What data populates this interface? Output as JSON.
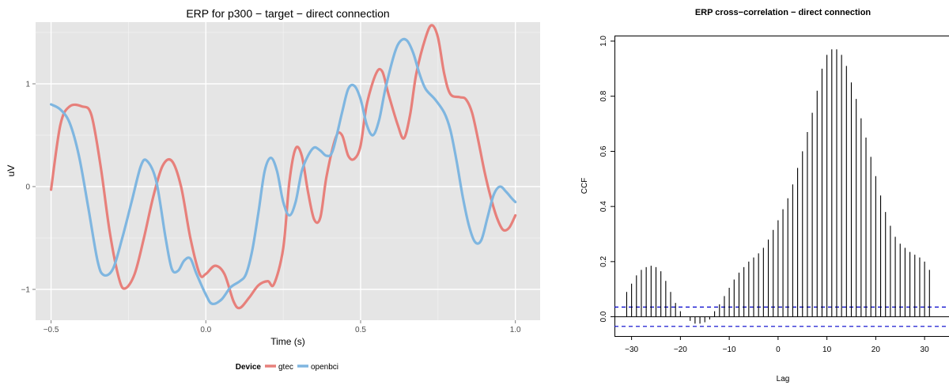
{
  "colors": {
    "gtec": "#E7807B",
    "openbci": "#7FB6E0",
    "panel_bg": "#E5E5E5",
    "ccf_bar": "#000000",
    "ccf_ci": "#0000CC"
  },
  "chart_data": [
    {
      "type": "line",
      "title": "ERP for p300 − target − direct connection",
      "xlabel": "Time (s)",
      "ylabel": "uV",
      "xlim": [
        -0.55,
        1.08
      ],
      "ylim": [
        -1.3,
        1.6
      ],
      "xticks": [
        -0.5,
        0.0,
        0.5,
        1.0
      ],
      "xtick_labels": [
        "−0.5",
        "0.0",
        "0.5",
        "1.0"
      ],
      "yticks": [
        -1,
        0,
        1
      ],
      "ytick_labels": [
        "−1",
        "0",
        "1"
      ],
      "grid": true,
      "legend": {
        "title": "Device",
        "position": "bottom",
        "entries": [
          "gtec",
          "openbci"
        ]
      },
      "series": [
        {
          "name": "gtec",
          "color_key": "gtec",
          "points": [
            [
              -0.5,
              -0.03
            ],
            [
              -0.47,
              0.6
            ],
            [
              -0.44,
              0.78
            ],
            [
              -0.4,
              0.78
            ],
            [
              -0.37,
              0.7
            ],
            [
              -0.34,
              0.2
            ],
            [
              -0.31,
              -0.45
            ],
            [
              -0.28,
              -0.9
            ],
            [
              -0.26,
              -0.99
            ],
            [
              -0.23,
              -0.85
            ],
            [
              -0.2,
              -0.5
            ],
            [
              -0.17,
              -0.1
            ],
            [
              -0.14,
              0.2
            ],
            [
              -0.11,
              0.25
            ],
            [
              -0.08,
              0.0
            ],
            [
              -0.05,
              -0.5
            ],
            [
              -0.02,
              -0.85
            ],
            [
              0.0,
              -0.85
            ],
            [
              0.03,
              -0.77
            ],
            [
              0.06,
              -0.85
            ],
            [
              0.09,
              -1.12
            ],
            [
              0.11,
              -1.18
            ],
            [
              0.14,
              -1.08
            ],
            [
              0.17,
              -0.96
            ],
            [
              0.2,
              -0.92
            ],
            [
              0.22,
              -0.95
            ],
            [
              0.25,
              -0.6
            ],
            [
              0.27,
              0.05
            ],
            [
              0.29,
              0.37
            ],
            [
              0.31,
              0.3
            ],
            [
              0.33,
              -0.05
            ],
            [
              0.35,
              -0.32
            ],
            [
              0.37,
              -0.3
            ],
            [
              0.39,
              0.1
            ],
            [
              0.42,
              0.48
            ],
            [
              0.44,
              0.5
            ],
            [
              0.46,
              0.3
            ],
            [
              0.48,
              0.27
            ],
            [
              0.5,
              0.4
            ],
            [
              0.52,
              0.8
            ],
            [
              0.55,
              1.1
            ],
            [
              0.57,
              1.12
            ],
            [
              0.59,
              0.9
            ],
            [
              0.62,
              0.6
            ],
            [
              0.64,
              0.47
            ],
            [
              0.66,
              0.7
            ],
            [
              0.68,
              1.1
            ],
            [
              0.71,
              1.45
            ],
            [
              0.73,
              1.57
            ],
            [
              0.75,
              1.45
            ],
            [
              0.77,
              1.1
            ],
            [
              0.79,
              0.9
            ],
            [
              0.82,
              0.87
            ],
            [
              0.84,
              0.85
            ],
            [
              0.86,
              0.72
            ],
            [
              0.88,
              0.45
            ],
            [
              0.9,
              0.15
            ],
            [
              0.92,
              -0.1
            ],
            [
              0.94,
              -0.3
            ],
            [
              0.96,
              -0.42
            ],
            [
              0.98,
              -0.4
            ],
            [
              1.0,
              -0.28
            ]
          ]
        },
        {
          "name": "openbci",
          "color_key": "openbci",
          "points": [
            [
              -0.5,
              0.8
            ],
            [
              -0.47,
              0.75
            ],
            [
              -0.44,
              0.62
            ],
            [
              -0.41,
              0.3
            ],
            [
              -0.38,
              -0.2
            ],
            [
              -0.35,
              -0.72
            ],
            [
              -0.33,
              -0.86
            ],
            [
              -0.3,
              -0.8
            ],
            [
              -0.27,
              -0.5
            ],
            [
              -0.24,
              -0.15
            ],
            [
              -0.21,
              0.2
            ],
            [
              -0.19,
              0.25
            ],
            [
              -0.16,
              0.05
            ],
            [
              -0.13,
              -0.5
            ],
            [
              -0.11,
              -0.8
            ],
            [
              -0.09,
              -0.82
            ],
            [
              -0.07,
              -0.72
            ],
            [
              -0.05,
              -0.7
            ],
            [
              -0.03,
              -0.85
            ],
            [
              0.0,
              -1.05
            ],
            [
              0.02,
              -1.14
            ],
            [
              0.05,
              -1.1
            ],
            [
              0.08,
              -0.98
            ],
            [
              0.11,
              -0.92
            ],
            [
              0.13,
              -0.85
            ],
            [
              0.15,
              -0.62
            ],
            [
              0.17,
              -0.25
            ],
            [
              0.19,
              0.15
            ],
            [
              0.21,
              0.28
            ],
            [
              0.23,
              0.15
            ],
            [
              0.25,
              -0.15
            ],
            [
              0.27,
              -0.28
            ],
            [
              0.29,
              -0.15
            ],
            [
              0.31,
              0.15
            ],
            [
              0.33,
              0.3
            ],
            [
              0.35,
              0.38
            ],
            [
              0.37,
              0.35
            ],
            [
              0.39,
              0.3
            ],
            [
              0.41,
              0.35
            ],
            [
              0.44,
              0.72
            ],
            [
              0.46,
              0.95
            ],
            [
              0.48,
              0.98
            ],
            [
              0.5,
              0.85
            ],
            [
              0.52,
              0.6
            ],
            [
              0.54,
              0.5
            ],
            [
              0.56,
              0.65
            ],
            [
              0.58,
              0.95
            ],
            [
              0.61,
              1.3
            ],
            [
              0.63,
              1.42
            ],
            [
              0.65,
              1.42
            ],
            [
              0.67,
              1.3
            ],
            [
              0.69,
              1.1
            ],
            [
              0.71,
              0.95
            ],
            [
              0.74,
              0.85
            ],
            [
              0.77,
              0.72
            ],
            [
              0.79,
              0.55
            ],
            [
              0.81,
              0.25
            ],
            [
              0.83,
              -0.1
            ],
            [
              0.85,
              -0.38
            ],
            [
              0.87,
              -0.54
            ],
            [
              0.89,
              -0.52
            ],
            [
              0.91,
              -0.3
            ],
            [
              0.93,
              -0.08
            ],
            [
              0.95,
              0.0
            ],
            [
              0.97,
              -0.05
            ],
            [
              0.99,
              -0.12
            ],
            [
              1.0,
              -0.15
            ]
          ]
        }
      ]
    },
    {
      "type": "bar",
      "title": "ERP cross−correlation − direct connection",
      "xlabel": "Lag",
      "ylabel": "CCF",
      "xlim": [
        -33.5,
        35
      ],
      "ylim": [
        -0.07,
        1.02
      ],
      "xticks": [
        -30,
        -20,
        -10,
        0,
        10,
        20,
        30
      ],
      "xtick_labels": [
        "−30",
        "−20",
        "−10",
        "0",
        "10",
        "20",
        "30"
      ],
      "yticks": [
        0.0,
        0.2,
        0.4,
        0.6,
        0.8,
        1.0
      ],
      "ytick_labels": [
        "0.0",
        "0.2",
        "0.4",
        "0.6",
        "0.8",
        "1.0"
      ],
      "confidence_band": 0.035,
      "lags": [
        -31,
        -30,
        -29,
        -28,
        -27,
        -26,
        -25,
        -24,
        -23,
        -22,
        -21,
        -20,
        -19,
        -18,
        -17,
        -16,
        -15,
        -14,
        -13,
        -12,
        -11,
        -10,
        -9,
        -8,
        -7,
        -6,
        -5,
        -4,
        -3,
        -2,
        -1,
        0,
        1,
        2,
        3,
        4,
        5,
        6,
        7,
        8,
        9,
        10,
        11,
        12,
        13,
        14,
        15,
        16,
        17,
        18,
        19,
        20,
        21,
        22,
        23,
        24,
        25,
        26,
        27,
        28,
        29,
        30,
        31
      ],
      "values": [
        0.09,
        0.12,
        0.15,
        0.17,
        0.18,
        0.185,
        0.18,
        0.165,
        0.13,
        0.09,
        0.05,
        0.02,
        0.0,
        -0.015,
        -0.025,
        -0.025,
        -0.02,
        -0.01,
        0.02,
        0.045,
        0.075,
        0.105,
        0.135,
        0.16,
        0.18,
        0.2,
        0.215,
        0.23,
        0.25,
        0.28,
        0.315,
        0.35,
        0.39,
        0.43,
        0.48,
        0.54,
        0.6,
        0.67,
        0.74,
        0.82,
        0.9,
        0.95,
        0.97,
        0.97,
        0.95,
        0.91,
        0.85,
        0.79,
        0.72,
        0.65,
        0.58,
        0.51,
        0.44,
        0.38,
        0.33,
        0.29,
        0.265,
        0.25,
        0.235,
        0.225,
        0.215,
        0.2,
        0.17
      ]
    }
  ]
}
